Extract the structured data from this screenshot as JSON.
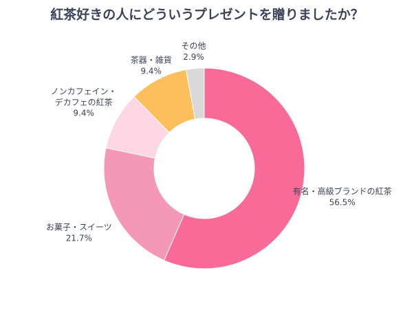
{
  "chart_data": {
    "type": "donut",
    "title": "紅茶好きの人にどういうプレゼントを贈りましたか？",
    "categories": [
      "有名・高級ブランドの紅茶",
      "お菓子・スイーツ",
      "ノンカフェイン・\nデカフェの紅茶",
      "茶器・雑貨",
      "その他"
    ],
    "values": [
      56.5,
      21.7,
      9.4,
      9.4,
      2.9
    ],
    "value_labels": [
      "56.5%",
      "21.7%",
      "9.4%",
      "9.4%",
      "2.9%"
    ],
    "colors": [
      "#f86b99",
      "#f597b6",
      "#fdd6e4",
      "#ffbe5c",
      "#d9d9d9"
    ]
  }
}
